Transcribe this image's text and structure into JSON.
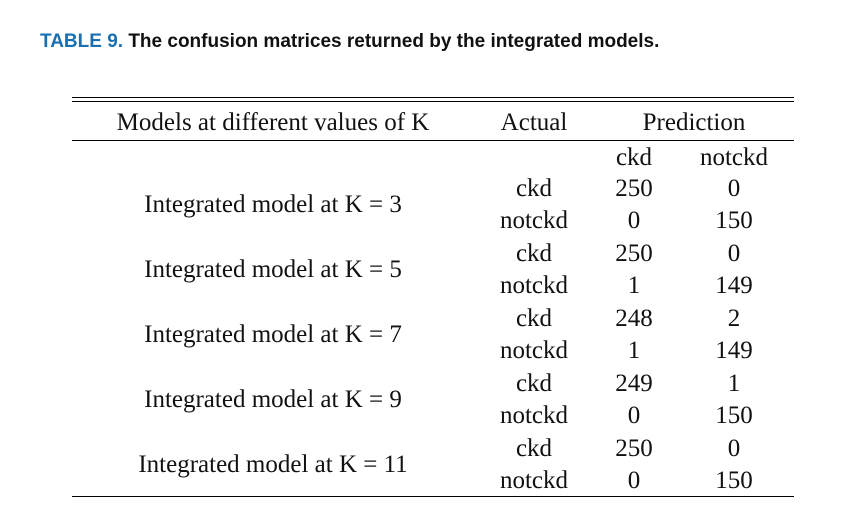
{
  "caption": {
    "label": "TABLE 9.",
    "text": "The confusion matrices returned by the integrated models."
  },
  "table": {
    "headers": {
      "models": "Models at different values of K",
      "actual": "Actual",
      "prediction": "Prediction"
    },
    "prediction_columns": [
      "ckd",
      "notckd"
    ],
    "rows": [
      {
        "model": "Integrated model at K = 3",
        "entries": [
          {
            "actual": "ckd",
            "ckd": "250",
            "notckd": "0"
          },
          {
            "actual": "notckd",
            "ckd": "0",
            "notckd": "150"
          }
        ]
      },
      {
        "model": "Integrated model at K = 5",
        "entries": [
          {
            "actual": "ckd",
            "ckd": "250",
            "notckd": "0"
          },
          {
            "actual": "notckd",
            "ckd": "1",
            "notckd": "149"
          }
        ]
      },
      {
        "model": "Integrated model at K = 7",
        "entries": [
          {
            "actual": "ckd",
            "ckd": "248",
            "notckd": "2"
          },
          {
            "actual": "notckd",
            "ckd": "1",
            "notckd": "149"
          }
        ]
      },
      {
        "model": "Integrated model at K = 9",
        "entries": [
          {
            "actual": "ckd",
            "ckd": "249",
            "notckd": "1"
          },
          {
            "actual": "notckd",
            "ckd": "0",
            "notckd": "150"
          }
        ]
      },
      {
        "model": "Integrated model at K = 11",
        "entries": [
          {
            "actual": "ckd",
            "ckd": "250",
            "notckd": "0"
          },
          {
            "actual": "notckd",
            "ckd": "0",
            "notckd": "150"
          }
        ]
      }
    ]
  }
}
